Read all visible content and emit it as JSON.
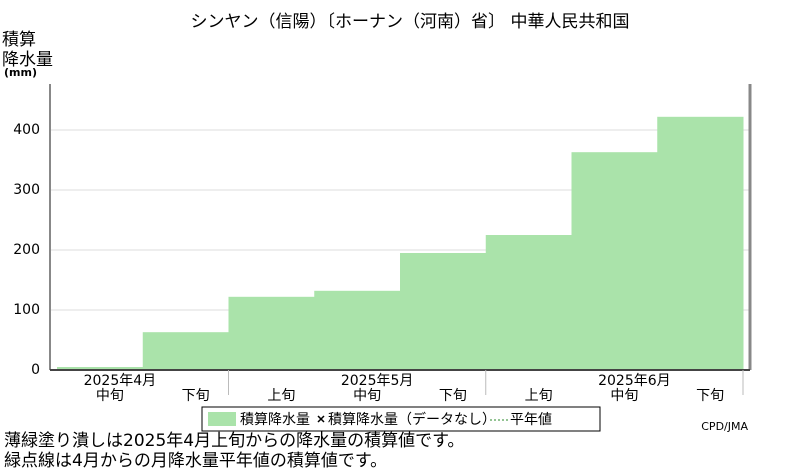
{
  "chart_data": {
    "type": "step-area",
    "title": "シンヤン（信陽）〔ホーナン（河南）省〕 中華人民共和国",
    "y_label": [
      "積算",
      "降水量",
      "(mm)"
    ],
    "categories": [
      "中旬",
      "下旬",
      "上旬",
      "中旬",
      "下旬",
      "上旬",
      "中旬",
      "下旬"
    ],
    "months": [
      "2025年4月",
      "2025年5月",
      "2025年6月"
    ],
    "series": [
      {
        "name": "積算降水量",
        "color": "#aae3aa",
        "values": [
          5,
          63,
          122,
          132,
          195,
          225,
          363,
          422
        ]
      }
    ],
    "legend_extra": [
      {
        "marker": "x",
        "label": "積算降水量（データなし）"
      },
      {
        "marker": "dotted",
        "label": "平年値"
      }
    ],
    "ylim": [
      0,
      470
    ],
    "yticks": [
      0,
      100,
      200,
      300,
      400
    ],
    "grid": true,
    "credit": "CPD/JMA",
    "notes": [
      "薄緑塗り潰しは2025年4月上旬からの降水量の積算値です。",
      "緑点線は4月からの月降水量平年値の積算値です。"
    ]
  }
}
